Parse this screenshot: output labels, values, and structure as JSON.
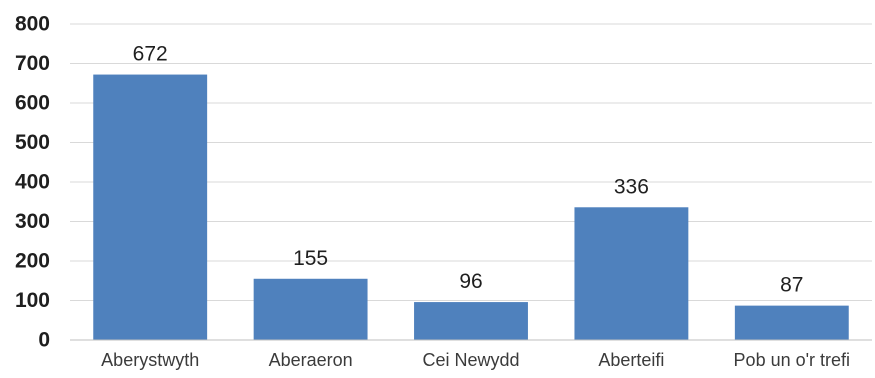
{
  "chart_data": {
    "type": "bar",
    "title": "",
    "xlabel": "",
    "ylabel": "",
    "categories": [
      "Aberystwyth",
      "Aberaeron",
      "Cei Newydd",
      "Aberteifi",
      "Pob un o'r trefi"
    ],
    "values": [
      672,
      155,
      96,
      336,
      87
    ],
    "ylim": [
      0,
      800
    ],
    "yticks": [
      0,
      100,
      200,
      300,
      400,
      500,
      600,
      700,
      800
    ],
    "grid": true,
    "legend": "none",
    "data_labels": true,
    "bar_color": "#4f81bd",
    "grid_color": "#d9d9d9",
    "text_color": "#1f1f1f"
  }
}
